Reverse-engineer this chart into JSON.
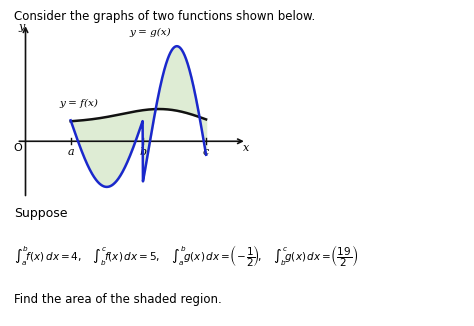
{
  "title": "Consider the graphs of two functions shown below.",
  "suppose_text": "Suppose",
  "find_text": "Find the area of the shaded region.",
  "label_fx": "y = f(x)",
  "label_gx": "y = g(x)",
  "label_y": "y",
  "label_x": "x",
  "label_O": "O",
  "label_a": "a",
  "label_b": "b",
  "label_c": "c",
  "shaded_color": "#deecd4",
  "curve_f_color": "#111111",
  "curve_g_color": "#1a28cc",
  "axis_color": "#111111",
  "background": "#ffffff",
  "a_x": 1.0,
  "b_x": 2.6,
  "c_x": 4.0,
  "xlim": [
    -0.25,
    5.0
  ],
  "ylim": [
    -1.6,
    3.2
  ]
}
